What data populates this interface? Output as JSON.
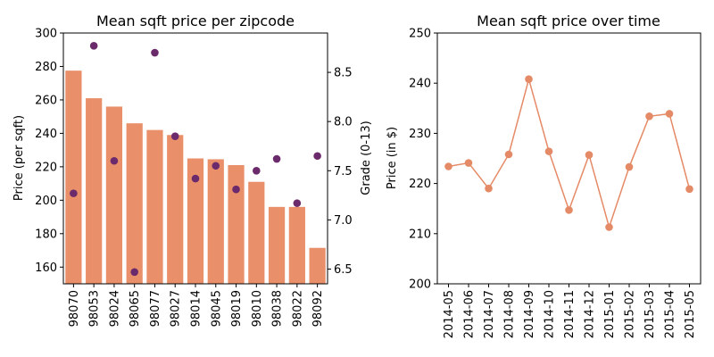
{
  "chart_data": [
    {
      "type": "bar",
      "title": "Mean sqft price per zipcode",
      "xlabel": "",
      "ylabel": "Price (per sqft)",
      "y2label": "Grade (0-13)",
      "ylim": [
        150,
        300
      ],
      "y2lim": [
        6.35,
        8.9
      ],
      "yticks": [
        160,
        180,
        200,
        220,
        240,
        260,
        280,
        300
      ],
      "y2ticks": [
        6.5,
        7.0,
        7.5,
        8.0,
        8.5
      ],
      "categories": [
        "98070",
        "98053",
        "98024",
        "98065",
        "98077",
        "98027",
        "98014",
        "98045",
        "98019",
        "98010",
        "98038",
        "98022",
        "98092"
      ],
      "series": [
        {
          "type": "bar",
          "axis": "left",
          "color": "#e9906a",
          "values": [
            277.5,
            261,
            256,
            246,
            242,
            239,
            225,
            224.5,
            221,
            211,
            196,
            196,
            171.5
          ]
        },
        {
          "type": "scatter",
          "axis": "right",
          "color": "#6b2a6b",
          "values": [
            7.27,
            8.77,
            7.6,
            6.47,
            8.7,
            7.85,
            7.42,
            7.55,
            7.31,
            7.5,
            7.62,
            7.17,
            7.65
          ]
        }
      ]
    },
    {
      "type": "line",
      "title": "Mean sqft price over time",
      "xlabel": "",
      "ylabel": "Price (in $)",
      "ylim": [
        200,
        250
      ],
      "yticks": [
        200,
        210,
        220,
        230,
        240,
        250
      ],
      "color": "#e58a66",
      "categories": [
        "2014-05",
        "2014-06",
        "2014-07",
        "2014-08",
        "2014-09",
        "2014-10",
        "2014-11",
        "2014-12",
        "2015-01",
        "2015-02",
        "2015-03",
        "2015-04",
        "2015-05"
      ],
      "values": [
        223.4,
        224.1,
        219.0,
        225.8,
        240.8,
        226.4,
        214.7,
        225.7,
        211.3,
        223.3,
        233.4,
        233.9,
        218.9
      ]
    }
  ]
}
